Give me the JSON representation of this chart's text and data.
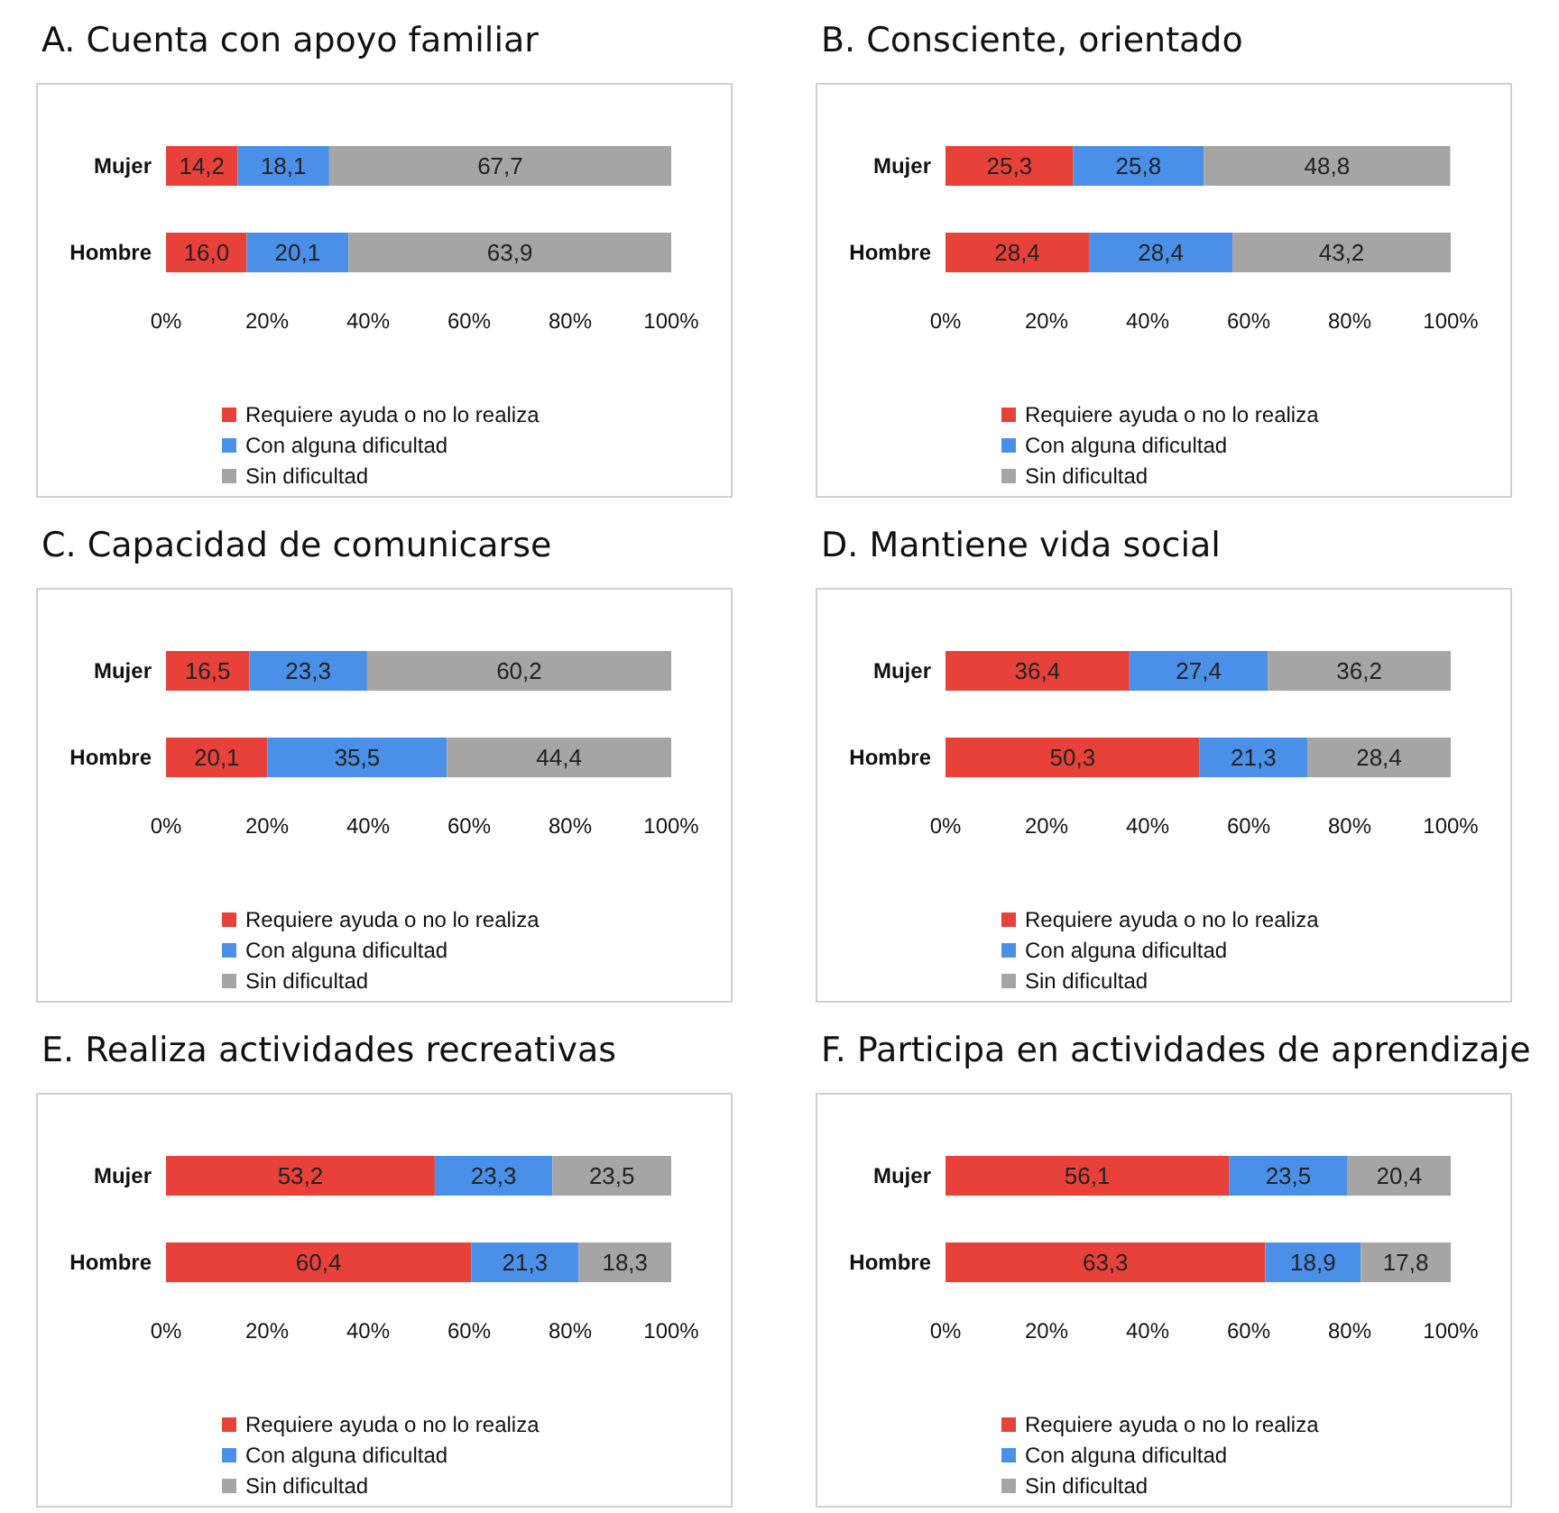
{
  "chart_data": [
    {
      "type": "bar",
      "title": "A. Cuenta con apoyo familiar",
      "orientation": "horizontal",
      "stacked": true,
      "legend": "bottom",
      "categories": [
        "Mujer",
        "Hombre"
      ],
      "xlim": [
        0,
        100
      ],
      "xticks": [
        {
          "value": 0,
          "label": "0%"
        },
        {
          "value": 20,
          "label": "20%"
        },
        {
          "value": 40,
          "label": "40%"
        },
        {
          "value": 60,
          "label": "60%"
        },
        {
          "value": 80,
          "label": "80%"
        },
        {
          "value": 100,
          "label": "100%"
        }
      ],
      "series": [
        {
          "name": "Requiere ayuda o no lo realiza",
          "color": "#e8413a",
          "values": [
            14.2,
            16.0
          ],
          "value_labels": [
            "14,2",
            "16,0"
          ]
        },
        {
          "name": "Con alguna dificultad",
          "color": "#4a90e8",
          "values": [
            18.1,
            20.1
          ],
          "value_labels": [
            "18,1",
            "20,1"
          ]
        },
        {
          "name": "Sin dificultad",
          "color": "#a5a5a5",
          "values": [
            67.7,
            63.9
          ],
          "value_labels": [
            "67,7",
            "63,9"
          ]
        }
      ]
    },
    {
      "type": "bar",
      "title": "B. Consciente, orientado",
      "orientation": "horizontal",
      "stacked": true,
      "legend": "bottom",
      "categories": [
        "Mujer",
        "Hombre"
      ],
      "xlim": [
        0,
        100
      ],
      "xticks": [
        {
          "value": 0,
          "label": "0%"
        },
        {
          "value": 20,
          "label": "20%"
        },
        {
          "value": 40,
          "label": "40%"
        },
        {
          "value": 60,
          "label": "60%"
        },
        {
          "value": 80,
          "label": "80%"
        },
        {
          "value": 100,
          "label": "100%"
        }
      ],
      "series": [
        {
          "name": "Requiere ayuda o no lo realiza",
          "color": "#e8413a",
          "values": [
            25.3,
            28.4
          ],
          "value_labels": [
            "25,3",
            "28,4"
          ]
        },
        {
          "name": "Con alguna dificultad",
          "color": "#4a90e8",
          "values": [
            25.8,
            28.4
          ],
          "value_labels": [
            "25,8",
            "28,4"
          ]
        },
        {
          "name": "Sin dificultad",
          "color": "#a5a5a5",
          "values": [
            48.8,
            43.2
          ],
          "value_labels": [
            "48,8",
            "43,2"
          ]
        }
      ]
    },
    {
      "type": "bar",
      "title": "C. Capacidad de comunicarse",
      "orientation": "horizontal",
      "stacked": true,
      "legend": "bottom",
      "categories": [
        "Mujer",
        "Hombre"
      ],
      "xlim": [
        0,
        100
      ],
      "xticks": [
        {
          "value": 0,
          "label": "0%"
        },
        {
          "value": 20,
          "label": "20%"
        },
        {
          "value": 40,
          "label": "40%"
        },
        {
          "value": 60,
          "label": "60%"
        },
        {
          "value": 80,
          "label": "80%"
        },
        {
          "value": 100,
          "label": "100%"
        }
      ],
      "series": [
        {
          "name": "Requiere ayuda o no lo realiza",
          "color": "#e8413a",
          "values": [
            16.5,
            20.1
          ],
          "value_labels": [
            "16,5",
            "20,1"
          ]
        },
        {
          "name": "Con alguna dificultad",
          "color": "#4a90e8",
          "values": [
            23.3,
            35.5
          ],
          "value_labels": [
            "23,3",
            "35,5"
          ]
        },
        {
          "name": "Sin dificultad",
          "color": "#a5a5a5",
          "values": [
            60.2,
            44.4
          ],
          "value_labels": [
            "60,2",
            "44,4"
          ]
        }
      ]
    },
    {
      "type": "bar",
      "title": "D. Mantiene vida social",
      "orientation": "horizontal",
      "stacked": true,
      "legend": "bottom",
      "categories": [
        "Mujer",
        "Hombre"
      ],
      "xlim": [
        0,
        100
      ],
      "xticks": [
        {
          "value": 0,
          "label": "0%"
        },
        {
          "value": 20,
          "label": "20%"
        },
        {
          "value": 40,
          "label": "40%"
        },
        {
          "value": 60,
          "label": "60%"
        },
        {
          "value": 80,
          "label": "80%"
        },
        {
          "value": 100,
          "label": "100%"
        }
      ],
      "series": [
        {
          "name": "Requiere ayuda o no lo realiza",
          "color": "#e8413a",
          "values": [
            36.4,
            50.3
          ],
          "value_labels": [
            "36,4",
            "50,3"
          ]
        },
        {
          "name": "Con alguna dificultad",
          "color": "#4a90e8",
          "values": [
            27.4,
            21.3
          ],
          "value_labels": [
            "27,4",
            "21,3"
          ]
        },
        {
          "name": "Sin dificultad",
          "color": "#a5a5a5",
          "values": [
            36.2,
            28.4
          ],
          "value_labels": [
            "36,2",
            "28,4"
          ]
        }
      ]
    },
    {
      "type": "bar",
      "title": "E. Realiza actividades recreativas",
      "orientation": "horizontal",
      "stacked": true,
      "legend": "bottom",
      "categories": [
        "Mujer",
        "Hombre"
      ],
      "xlim": [
        0,
        100
      ],
      "xticks": [
        {
          "value": 0,
          "label": "0%"
        },
        {
          "value": 20,
          "label": "20%"
        },
        {
          "value": 40,
          "label": "40%"
        },
        {
          "value": 60,
          "label": "60%"
        },
        {
          "value": 80,
          "label": "80%"
        },
        {
          "value": 100,
          "label": "100%"
        }
      ],
      "series": [
        {
          "name": "Requiere ayuda o no lo realiza",
          "color": "#e8413a",
          "values": [
            53.2,
            60.4
          ],
          "value_labels": [
            "53,2",
            "60,4"
          ]
        },
        {
          "name": "Con alguna dificultad",
          "color": "#4a90e8",
          "values": [
            23.3,
            21.3
          ],
          "value_labels": [
            "23,3",
            "21,3"
          ]
        },
        {
          "name": "Sin dificultad",
          "color": "#a5a5a5",
          "values": [
            23.5,
            18.3
          ],
          "value_labels": [
            "23,5",
            "18,3"
          ]
        }
      ]
    },
    {
      "type": "bar",
      "title": "F. Participa en actividades de aprendizaje",
      "orientation": "horizontal",
      "stacked": true,
      "legend": "bottom",
      "categories": [
        "Mujer",
        "Hombre"
      ],
      "xlim": [
        0,
        100
      ],
      "xticks": [
        {
          "value": 0,
          "label": "0%"
        },
        {
          "value": 20,
          "label": "20%"
        },
        {
          "value": 40,
          "label": "40%"
        },
        {
          "value": 60,
          "label": "60%"
        },
        {
          "value": 80,
          "label": "80%"
        },
        {
          "value": 100,
          "label": "100%"
        }
      ],
      "series": [
        {
          "name": "Requiere ayuda o no lo realiza",
          "color": "#e8413a",
          "values": [
            56.1,
            63.3
          ],
          "value_labels": [
            "56,1",
            "63,3"
          ]
        },
        {
          "name": "Con alguna dificultad",
          "color": "#4a90e8",
          "values": [
            23.5,
            18.9
          ],
          "value_labels": [
            "23,5",
            "18,9"
          ]
        },
        {
          "name": "Sin dificultad",
          "color": "#a5a5a5",
          "values": [
            20.4,
            17.8
          ],
          "value_labels": [
            "20,4",
            "17,8"
          ]
        }
      ]
    }
  ]
}
